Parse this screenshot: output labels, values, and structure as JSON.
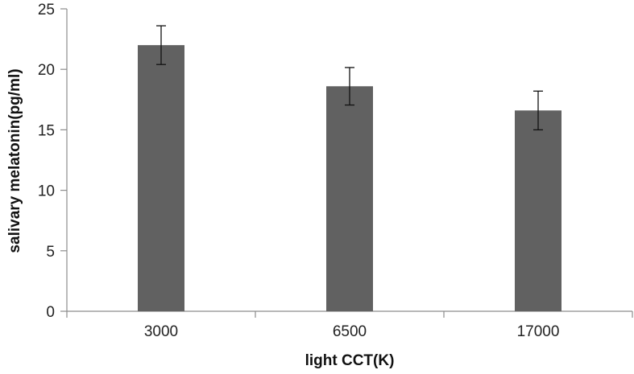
{
  "chart_data": {
    "type": "bar",
    "title": "",
    "xlabel": "light CCT(K)",
    "ylabel": "salivary melatonin(pg/ml)",
    "categories": [
      "3000",
      "6500",
      "17000"
    ],
    "values": [
      22.0,
      18.6,
      16.6
    ],
    "error_bars": [
      1.6,
      1.55,
      1.6
    ],
    "ylim": [
      0,
      25
    ],
    "yticks": [
      "0",
      "5",
      "10",
      "15",
      "20",
      "25"
    ],
    "grid": false,
    "legend": "none",
    "bar_color": "#616161",
    "axis_color": "#8c8c8c"
  }
}
